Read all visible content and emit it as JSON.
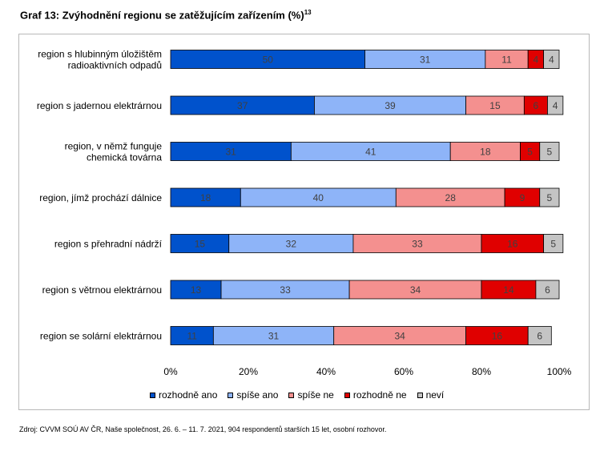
{
  "title": "Graf 13: Zvýhodnění regionu se zatěžujícím zařízením (%)",
  "title_sup": "13",
  "source": "Zdroj: CVVM SOÚ AV ČR, Naše společnost, 26. 6. – 11. 7. 2021, 904 respondentů starších 15 let, osobní rozhovor.",
  "chart_data": {
    "type": "bar",
    "orientation": "horizontal",
    "stacked": true,
    "percent_stacked": true,
    "categories": [
      [
        "region s hlubinným úložištěm",
        "radioaktivních odpadů"
      ],
      [
        "region s jadernou elektrárnou"
      ],
      [
        "region, v němž funguje",
        "chemická továrna"
      ],
      [
        "region, jímž prochází dálnice"
      ],
      [
        "region s přehradní nádrží"
      ],
      [
        "region s větrnou elektrárnou"
      ],
      [
        "region se solární elektrárnou"
      ]
    ],
    "series": [
      {
        "name": "rozhodně ano",
        "color": "#0052cc",
        "values": [
          50,
          37,
          31,
          18,
          15,
          13,
          11
        ]
      },
      {
        "name": "spíše ano",
        "color": "#8eb4f8",
        "values": [
          31,
          39,
          41,
          40,
          32,
          33,
          31
        ]
      },
      {
        "name": "spíše ne",
        "color": "#f4908f",
        "values": [
          11,
          15,
          18,
          28,
          33,
          34,
          34
        ]
      },
      {
        "name": "rozhodně ne",
        "color": "#e00000",
        "values": [
          4,
          6,
          5,
          9,
          16,
          14,
          16
        ]
      },
      {
        "name": "neví",
        "color": "#c4c4c4",
        "values": [
          4,
          4,
          5,
          5,
          5,
          6,
          6
        ]
      }
    ],
    "xticks": [
      "0%",
      "20%",
      "40%",
      "60%",
      "80%",
      "100%"
    ],
    "xlim": [
      0,
      100
    ],
    "grid": false,
    "legend_position": "bottom"
  }
}
